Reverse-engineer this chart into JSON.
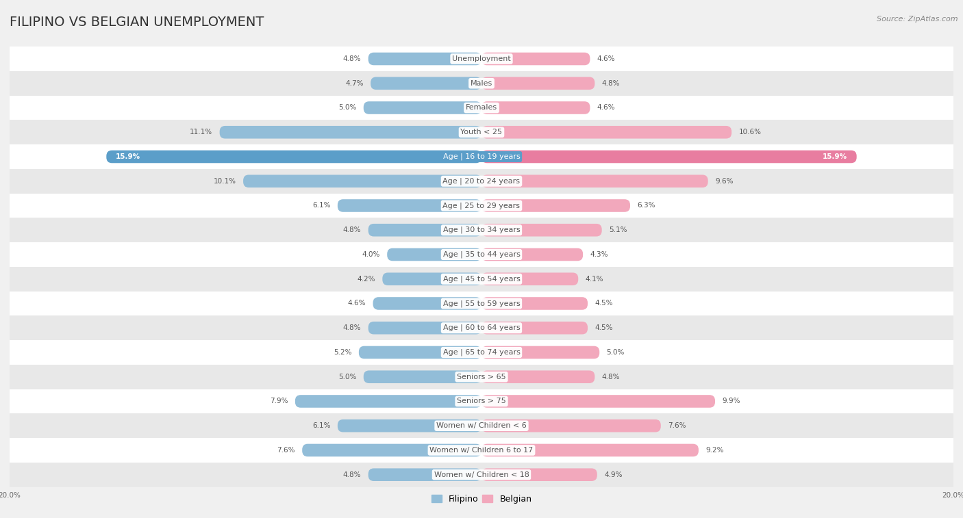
{
  "title": "FILIPINO VS BELGIAN UNEMPLOYMENT",
  "source": "Source: ZipAtlas.com",
  "categories": [
    "Unemployment",
    "Males",
    "Females",
    "Youth < 25",
    "Age | 16 to 19 years",
    "Age | 20 to 24 years",
    "Age | 25 to 29 years",
    "Age | 30 to 34 years",
    "Age | 35 to 44 years",
    "Age | 45 to 54 years",
    "Age | 55 to 59 years",
    "Age | 60 to 64 years",
    "Age | 65 to 74 years",
    "Seniors > 65",
    "Seniors > 75",
    "Women w/ Children < 6",
    "Women w/ Children 6 to 17",
    "Women w/ Children < 18"
  ],
  "filipino_values": [
    4.8,
    4.7,
    5.0,
    11.1,
    15.9,
    10.1,
    6.1,
    4.8,
    4.0,
    4.2,
    4.6,
    4.8,
    5.2,
    5.0,
    7.9,
    6.1,
    7.6,
    4.8
  ],
  "belgian_values": [
    4.6,
    4.8,
    4.6,
    10.6,
    15.9,
    9.6,
    6.3,
    5.1,
    4.3,
    4.1,
    4.5,
    4.5,
    5.0,
    4.8,
    9.9,
    7.6,
    9.2,
    4.9
  ],
  "filipino_color": "#92BDD8",
  "belgian_color": "#F2A8BC",
  "bar_height": 0.52,
  "xlim": 20.0,
  "background_color": "#f0f0f0",
  "row_bg_light": "#ffffff",
  "row_bg_dark": "#e8e8e8",
  "title_fontsize": 14,
  "label_fontsize": 8,
  "value_fontsize": 7.5,
  "legend_fontsize": 9,
  "highlight_row": 4,
  "highlight_color_fil": "#5B9EC9",
  "highlight_color_bel": "#E87DA0"
}
